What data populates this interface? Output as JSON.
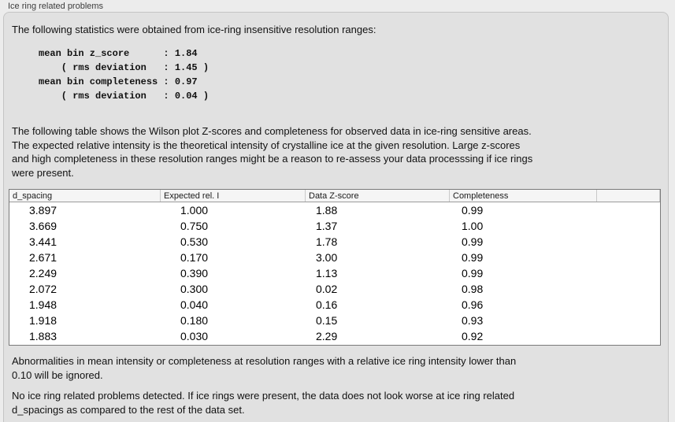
{
  "group": {
    "title": "Ice ring related problems"
  },
  "intro": {
    "text": "The following statistics were obtained from ice-ring insensitive resolution ranges:"
  },
  "stats_block": {
    "text": "mean bin z_score      : 1.84\n    ( rms deviation   : 1.45 )\nmean bin completeness : 0.97\n    ( rms deviation   : 0.04 )"
  },
  "table_description": {
    "text": "The following table shows the Wilson plot Z-scores and completeness for observed data in ice-ring sensitive areas.\nThe expected relative intensity is the theoretical intensity of crystalline ice at the given resolution. Large z-scores\nand high completeness in these resolution ranges might be a reason to re-assess your data processsing if ice rings\nwere present."
  },
  "table": {
    "columns": [
      "d_spacing",
      "Expected rel. I",
      "Data Z-score",
      "Completeness"
    ],
    "rows": [
      [
        "3.897",
        "1.000",
        "1.88",
        "0.99"
      ],
      [
        "3.669",
        "0.750",
        "1.37",
        "1.00"
      ],
      [
        "3.441",
        "0.530",
        "1.78",
        "0.99"
      ],
      [
        "2.671",
        "0.170",
        "3.00",
        "0.99"
      ],
      [
        "2.249",
        "0.390",
        "1.13",
        "0.99"
      ],
      [
        "2.072",
        "0.300",
        "0.02",
        "0.98"
      ],
      [
        "1.948",
        "0.040",
        "0.16",
        "0.96"
      ],
      [
        "1.918",
        "0.180",
        "0.15",
        "0.93"
      ],
      [
        "1.883",
        "0.030",
        "2.29",
        "0.92"
      ]
    ]
  },
  "notes": {
    "ignore_note": "Abnormalities in mean intensity or completeness at resolution ranges with a relative ice ring intensity lower than\n0.10 will be ignored.",
    "conclusion": "No ice ring related problems detected. If ice rings were present, the data does not look worse at ice ring related\nd_spacings as compared to the rest of the data set."
  },
  "colors": {
    "page_bg": "#ececec",
    "panel_bg": "#e1e1e1",
    "table_header_bg": "#f5f5f5",
    "table_border": "#7a7a7a"
  }
}
